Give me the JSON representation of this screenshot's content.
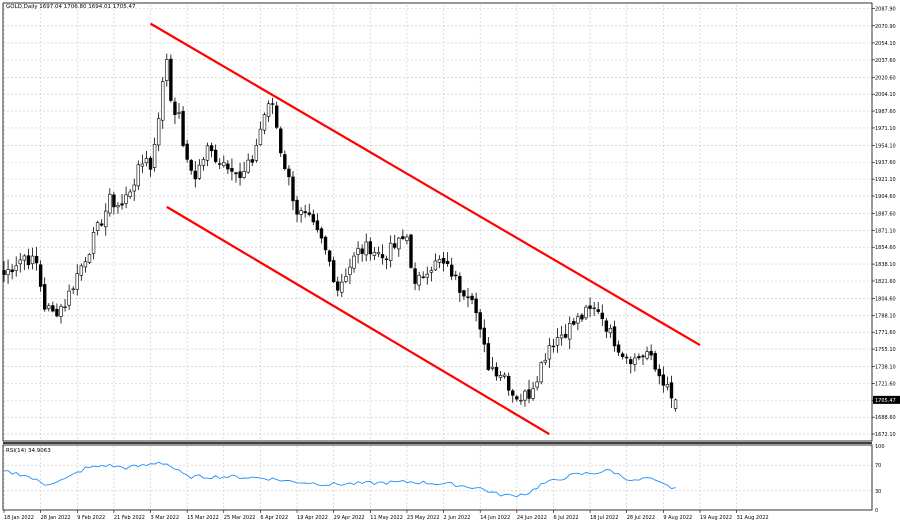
{
  "window": {
    "title": "GOLD,Daily  1697.04 1706.80 1694.01 1705.47",
    "rsi_label": "RSI(14) 34.9063"
  },
  "colors": {
    "background": "#ffffff",
    "grid": "#c8c8c8",
    "candle": "#000000",
    "channel": "#ff0000",
    "rsi_line": "#1e90ff",
    "price_tag_bg": "#000000",
    "price_tag_text": "#ffffff"
  },
  "chart_data": [
    {
      "type": "candlestick",
      "title": "GOLD,Daily  1697.04 1706.80 1694.01 1705.47",
      "price_axis": {
        "ylim": [
          1665.3,
          2091.2
        ],
        "ticks": [
          "2087.90",
          "2070.90",
          "2054.10",
          "2037.60",
          "2020.60",
          "2004.10",
          "1987.60",
          "1971.10",
          "1954.10",
          "1937.60",
          "1921.10",
          "1904.60",
          "1887.60",
          "1871.10",
          "1854.60",
          "1838.10",
          "1821.60",
          "1804.60",
          "1788.10",
          "1771.60",
          "1755.10",
          "1738.10",
          "1721.60",
          "1705.10",
          "1688.60",
          "1672.10"
        ],
        "current_price_label": "1705.47",
        "current_price": 1705.47
      },
      "x_axis": {
        "ticks": [
          "18 Jan 2022",
          "28 Jan 2022",
          "9 Feb 2022",
          "21 Feb 2022",
          "3 Mar 2022",
          "15 Mar 2022",
          "25 Mar 2022",
          "6 Apr 2022",
          "19 Apr 2022",
          "29 Apr 2022",
          "11 May 2022",
          "23 May 2022",
          "2 Jun 2022",
          "14 Jun 2022",
          "24 Jun 2022",
          "6 Jul 2022",
          "18 Jul 2022",
          "28 Jul 2022",
          "9 Aug 2022",
          "19 Aug 2022",
          "31 Aug 2022"
        ],
        "bars_per_tick": 9
      },
      "grid": true,
      "close_anchors": [
        [
          0,
          1828
        ],
        [
          3,
          1840
        ],
        [
          5,
          1846
        ],
        [
          8,
          1838
        ],
        [
          10,
          1797
        ],
        [
          12,
          1790
        ],
        [
          15,
          1800
        ],
        [
          18,
          1828
        ],
        [
          20,
          1845
        ],
        [
          23,
          1872
        ],
        [
          26,
          1900
        ],
        [
          29,
          1895
        ],
        [
          32,
          1920
        ],
        [
          35,
          1945
        ],
        [
          36,
          1930
        ],
        [
          38,
          1985
        ],
        [
          40,
          2040
        ],
        [
          41,
          2000
        ],
        [
          43,
          1980
        ],
        [
          45,
          1935
        ],
        [
          47,
          1925
        ],
        [
          50,
          1950
        ],
        [
          53,
          1940
        ],
        [
          56,
          1935
        ],
        [
          58,
          1920
        ],
        [
          61,
          1940
        ],
        [
          64,
          1985
        ],
        [
          66,
          1995
        ],
        [
          68,
          1950
        ],
        [
          70,
          1920
        ],
        [
          72,
          1890
        ],
        [
          75,
          1880
        ],
        [
          78,
          1860
        ],
        [
          80,
          1840
        ],
        [
          82,
          1815
        ],
        [
          84,
          1830
        ],
        [
          87,
          1850
        ],
        [
          90,
          1855
        ],
        [
          93,
          1845
        ],
        [
          96,
          1855
        ],
        [
          99,
          1865
        ],
        [
          101,
          1815
        ],
        [
          104,
          1835
        ],
        [
          107,
          1840
        ],
        [
          110,
          1830
        ],
        [
          112,
          1815
        ],
        [
          115,
          1810
        ],
        [
          117,
          1770
        ],
        [
          119,
          1740
        ],
        [
          121,
          1735
        ],
        [
          123,
          1730
        ],
        [
          125,
          1712
        ],
        [
          127,
          1708
        ],
        [
          129,
          1712
        ],
        [
          131,
          1730
        ],
        [
          134,
          1760
        ],
        [
          137,
          1770
        ],
        [
          140,
          1780
        ],
        [
          143,
          1790
        ],
        [
          146,
          1795
        ],
        [
          149,
          1770
        ],
        [
          152,
          1752
        ],
        [
          155,
          1745
        ],
        [
          158,
          1752
        ],
        [
          160,
          1735
        ],
        [
          162,
          1725
        ],
        [
          164,
          1705
        ]
      ],
      "last_candle": {
        "open": 1697.04,
        "high": 1706.8,
        "low": 1694.01,
        "close": 1705.47
      },
      "channel_lines": [
        {
          "from": {
            "bar": 36,
            "price": 2073
          },
          "to": {
            "bar": 171,
            "price": 1759
          }
        },
        {
          "from": {
            "bar": 40,
            "price": 1894
          },
          "to": {
            "bar": 134,
            "price": 1672
          }
        }
      ]
    },
    {
      "type": "line",
      "title": "RSI(14) 34.9063",
      "ylim": [
        0,
        100
      ],
      "ticks": [
        {
          "value": 100,
          "label": "100"
        },
        {
          "value": 70,
          "label": "70"
        },
        {
          "value": 30,
          "label": "30"
        },
        {
          "value": 0,
          "label": "0"
        }
      ],
      "anchors": [
        [
          0,
          60
        ],
        [
          5,
          55
        ],
        [
          10,
          40
        ],
        [
          15,
          48
        ],
        [
          20,
          65
        ],
        [
          25,
          70
        ],
        [
          30,
          66
        ],
        [
          35,
          70
        ],
        [
          38,
          75
        ],
        [
          40,
          72
        ],
        [
          45,
          52
        ],
        [
          55,
          52
        ],
        [
          64,
          50
        ],
        [
          70,
          45
        ],
        [
          80,
          40
        ],
        [
          90,
          42
        ],
        [
          100,
          44
        ],
        [
          110,
          40
        ],
        [
          117,
          34
        ],
        [
          121,
          25
        ],
        [
          125,
          22
        ],
        [
          129,
          27
        ],
        [
          132,
          40
        ],
        [
          140,
          55
        ],
        [
          145,
          58
        ],
        [
          149,
          62
        ],
        [
          152,
          52
        ],
        [
          155,
          45
        ],
        [
          158,
          50
        ],
        [
          161,
          42
        ],
        [
          164,
          35
        ]
      ]
    }
  ]
}
